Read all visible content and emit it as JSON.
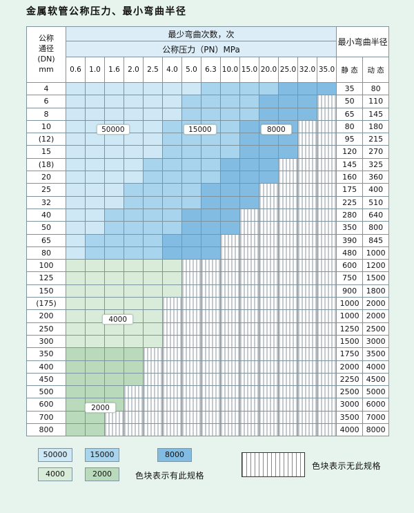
{
  "page_title": "金属软管公称压力、最小弯曲半径",
  "colors": {
    "page_bg": "#e7f3ed",
    "band_50000": "#cfe8f6",
    "band_15000": "#a8d4ee",
    "band_8000": "#82bce2",
    "band_4000": "#d9ecd9",
    "band_2000": "#b9dabb",
    "grid": "#7d949e"
  },
  "table": {
    "header": {
      "dn_lines": [
        "公称",
        "通径",
        "(DN)",
        "mm"
      ],
      "bend_cycles": "最少弯曲次数，次",
      "pressure": "公称压力（PN）MPa",
      "radius": "最小弯曲半径",
      "static": "静 态",
      "dynamic": "动 态",
      "pressure_columns": [
        "0.6",
        "1.0",
        "1.6",
        "2.0",
        "2.5",
        "4.0",
        "5.0",
        "6.3",
        "10.0",
        "15.0",
        "20.0",
        "25.0",
        "32.0",
        "35.0"
      ]
    },
    "inline_labels": [
      {
        "text": "50000",
        "row": 3,
        "col": 1.6
      },
      {
        "text": "15000",
        "row": 3,
        "col": 6.1
      },
      {
        "text": "8000",
        "row": 3,
        "col": 10.1
      },
      {
        "text": "4000",
        "row": 18,
        "col": 1.9
      },
      {
        "text": "2000",
        "row": 25,
        "col": 1.0
      }
    ],
    "rows": [
      {
        "dn": "4",
        "static": "35",
        "dynamic": "80",
        "cells": [
          "b50",
          "b50",
          "b50",
          "b50",
          "b50",
          "b50",
          "b50",
          "b15",
          "b15",
          "b15",
          "b15",
          "b8",
          "b8",
          "b8"
        ]
      },
      {
        "dn": "6",
        "static": "50",
        "dynamic": "110",
        "cells": [
          "b50",
          "b50",
          "b50",
          "b50",
          "b50",
          "b50",
          "b15",
          "b15",
          "b15",
          "b15",
          "b8",
          "b8",
          "b8",
          "x"
        ]
      },
      {
        "dn": "8",
        "static": "65",
        "dynamic": "145",
        "cells": [
          "b50",
          "b50",
          "b50",
          "b50",
          "b50",
          "b50",
          "b15",
          "b15",
          "b15",
          "b15",
          "b8",
          "b8",
          "b8",
          "x"
        ]
      },
      {
        "dn": "10",
        "static": "80",
        "dynamic": "180",
        "cells": [
          "b50",
          "b50",
          "b50",
          "b50",
          "b50",
          "b15",
          "b15",
          "b15",
          "b15",
          "b8",
          "b8",
          "b8",
          "x",
          "x"
        ]
      },
      {
        "dn": "(12)",
        "static": "95",
        "dynamic": "215",
        "cells": [
          "b50",
          "b50",
          "b50",
          "b50",
          "b50",
          "b15",
          "b15",
          "b15",
          "b15",
          "b8",
          "b8",
          "b8",
          "x",
          "x"
        ]
      },
      {
        "dn": "15",
        "static": "120",
        "dynamic": "270",
        "cells": [
          "b50",
          "b50",
          "b50",
          "b50",
          "b50",
          "b15",
          "b15",
          "b15",
          "b15",
          "b8",
          "b8",
          "b8",
          "x",
          "x"
        ]
      },
      {
        "dn": "(18)",
        "static": "145",
        "dynamic": "325",
        "cells": [
          "b50",
          "b50",
          "b50",
          "b50",
          "b15",
          "b15",
          "b15",
          "b15",
          "b8",
          "b8",
          "b8",
          "x",
          "x",
          "x"
        ]
      },
      {
        "dn": "20",
        "static": "160",
        "dynamic": "360",
        "cells": [
          "b50",
          "b50",
          "b50",
          "b50",
          "b15",
          "b15",
          "b15",
          "b15",
          "b8",
          "b8",
          "b8",
          "x",
          "x",
          "x"
        ]
      },
      {
        "dn": "25",
        "static": "175",
        "dynamic": "400",
        "cells": [
          "b50",
          "b50",
          "b50",
          "b15",
          "b15",
          "b15",
          "b15",
          "b8",
          "b8",
          "b8",
          "x",
          "x",
          "x",
          "x"
        ]
      },
      {
        "dn": "32",
        "static": "225",
        "dynamic": "510",
        "cells": [
          "b50",
          "b50",
          "b50",
          "b15",
          "b15",
          "b15",
          "b15",
          "b8",
          "b8",
          "b8",
          "x",
          "x",
          "x",
          "x"
        ]
      },
      {
        "dn": "40",
        "static": "280",
        "dynamic": "640",
        "cells": [
          "b50",
          "b50",
          "b15",
          "b15",
          "b15",
          "b15",
          "b8",
          "b8",
          "b8",
          "x",
          "x",
          "x",
          "x",
          "x"
        ]
      },
      {
        "dn": "50",
        "static": "350",
        "dynamic": "800",
        "cells": [
          "b50",
          "b50",
          "b15",
          "b15",
          "b15",
          "b15",
          "b8",
          "b8",
          "b8",
          "x",
          "x",
          "x",
          "x",
          "x"
        ]
      },
      {
        "dn": "65",
        "static": "390",
        "dynamic": "845",
        "cells": [
          "b50",
          "b15",
          "b15",
          "b15",
          "b15",
          "b8",
          "b8",
          "b8",
          "x",
          "x",
          "x",
          "x",
          "x",
          "x"
        ]
      },
      {
        "dn": "80",
        "static": "480",
        "dynamic": "1000",
        "cells": [
          "b50",
          "b15",
          "b15",
          "b15",
          "b15",
          "b8",
          "b8",
          "b8",
          "x",
          "x",
          "x",
          "x",
          "x",
          "x"
        ]
      },
      {
        "dn": "100",
        "static": "600",
        "dynamic": "1200",
        "cells": [
          "g4",
          "g4",
          "g4",
          "g4",
          "g4",
          "g4",
          "x",
          "x",
          "x",
          "x",
          "x",
          "x",
          "x",
          "x"
        ]
      },
      {
        "dn": "125",
        "static": "750",
        "dynamic": "1500",
        "cells": [
          "g4",
          "g4",
          "g4",
          "g4",
          "g4",
          "g4",
          "x",
          "x",
          "x",
          "x",
          "x",
          "x",
          "x",
          "x"
        ]
      },
      {
        "dn": "150",
        "static": "900",
        "dynamic": "1800",
        "cells": [
          "g4",
          "g4",
          "g4",
          "g4",
          "g4",
          "g4",
          "x",
          "x",
          "x",
          "x",
          "x",
          "x",
          "x",
          "x"
        ]
      },
      {
        "dn": "(175)",
        "static": "1000",
        "dynamic": "2000",
        "cells": [
          "g4",
          "g4",
          "g4",
          "g4",
          "g4",
          "x",
          "x",
          "x",
          "x",
          "x",
          "x",
          "x",
          "x",
          "x"
        ]
      },
      {
        "dn": "200",
        "static": "1000",
        "dynamic": "2000",
        "cells": [
          "g4",
          "g4",
          "g4",
          "g4",
          "g4",
          "x",
          "x",
          "x",
          "x",
          "x",
          "x",
          "x",
          "x",
          "x"
        ]
      },
      {
        "dn": "250",
        "static": "1250",
        "dynamic": "2500",
        "cells": [
          "g4",
          "g4",
          "g4",
          "g4",
          "g4",
          "x",
          "x",
          "x",
          "x",
          "x",
          "x",
          "x",
          "x",
          "x"
        ]
      },
      {
        "dn": "300",
        "static": "1500",
        "dynamic": "3000",
        "cells": [
          "g4",
          "g4",
          "g4",
          "g4",
          "g4",
          "x",
          "x",
          "x",
          "x",
          "x",
          "x",
          "x",
          "x",
          "x"
        ]
      },
      {
        "dn": "350",
        "static": "1750",
        "dynamic": "3500",
        "cells": [
          "g2",
          "g2",
          "g2",
          "g2",
          "x",
          "x",
          "x",
          "x",
          "x",
          "x",
          "x",
          "x",
          "x",
          "x"
        ]
      },
      {
        "dn": "400",
        "static": "2000",
        "dynamic": "4000",
        "cells": [
          "g2",
          "g2",
          "g2",
          "g2",
          "x",
          "x",
          "x",
          "x",
          "x",
          "x",
          "x",
          "x",
          "x",
          "x"
        ]
      },
      {
        "dn": "450",
        "static": "2250",
        "dynamic": "4500",
        "cells": [
          "g2",
          "g2",
          "g2",
          "g2",
          "x",
          "x",
          "x",
          "x",
          "x",
          "x",
          "x",
          "x",
          "x",
          "x"
        ]
      },
      {
        "dn": "500",
        "static": "2500",
        "dynamic": "5000",
        "cells": [
          "g2",
          "g2",
          "g2",
          "x",
          "x",
          "x",
          "x",
          "x",
          "x",
          "x",
          "x",
          "x",
          "x",
          "x"
        ]
      },
      {
        "dn": "600",
        "static": "3000",
        "dynamic": "6000",
        "cells": [
          "g2",
          "g2",
          "g2",
          "x",
          "x",
          "x",
          "x",
          "x",
          "x",
          "x",
          "x",
          "x",
          "x",
          "x"
        ]
      },
      {
        "dn": "700",
        "static": "3500",
        "dynamic": "7000",
        "cells": [
          "g2",
          "g2",
          "x",
          "x",
          "x",
          "x",
          "x",
          "x",
          "x",
          "x",
          "x",
          "x",
          "x",
          "x"
        ]
      },
      {
        "dn": "800",
        "static": "4000",
        "dynamic": "8000",
        "cells": [
          "g2",
          "g2",
          "x",
          "x",
          "x",
          "x",
          "x",
          "x",
          "x",
          "x",
          "x",
          "x",
          "x",
          "x"
        ]
      }
    ]
  },
  "legend": {
    "items": [
      {
        "label": "50000",
        "color": "#cfe8f6"
      },
      {
        "label": "15000",
        "color": "#a8d4ee"
      },
      {
        "label": "8000",
        "color": "#82bce2"
      },
      {
        "label": "4000",
        "color": "#d9ecd9"
      },
      {
        "label": "2000",
        "color": "#b9dabb"
      }
    ],
    "has_spec_text": "色块表示有此规格",
    "no_spec_text": "色块表示无此规格"
  }
}
